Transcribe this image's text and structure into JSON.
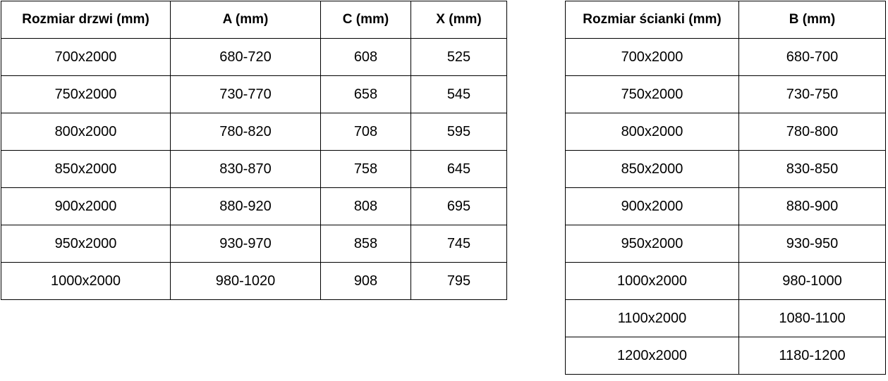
{
  "door_table": {
    "headers": [
      "Rozmiar drzwi (mm)",
      "A (mm)",
      "C (mm)",
      "X (mm)"
    ],
    "rows": [
      [
        "700x2000",
        "680-720",
        "608",
        "525"
      ],
      [
        "750x2000",
        "730-770",
        "658",
        "545"
      ],
      [
        "800x2000",
        "780-820",
        "708",
        "595"
      ],
      [
        "850x2000",
        "830-870",
        "758",
        "645"
      ],
      [
        "900x2000",
        "880-920",
        "808",
        "695"
      ],
      [
        "950x2000",
        "930-970",
        "858",
        "745"
      ],
      [
        "1000x2000",
        "980-1020",
        "908",
        "795"
      ]
    ]
  },
  "wall_table": {
    "headers": [
      "Rozmiar ścianki (mm)",
      "B (mm)"
    ],
    "rows": [
      [
        "700x2000",
        "680-700"
      ],
      [
        "750x2000",
        "730-750"
      ],
      [
        "800x2000",
        "780-800"
      ],
      [
        "850x2000",
        "830-850"
      ],
      [
        "900x2000",
        "880-900"
      ],
      [
        "950x2000",
        "930-950"
      ],
      [
        "1000x2000",
        "980-1000"
      ],
      [
        "1100x2000",
        "1080-1100"
      ],
      [
        "1200x2000",
        "1180-1200"
      ]
    ]
  },
  "colors": {
    "border": "#000000",
    "text": "#000000",
    "background": "#ffffff"
  }
}
